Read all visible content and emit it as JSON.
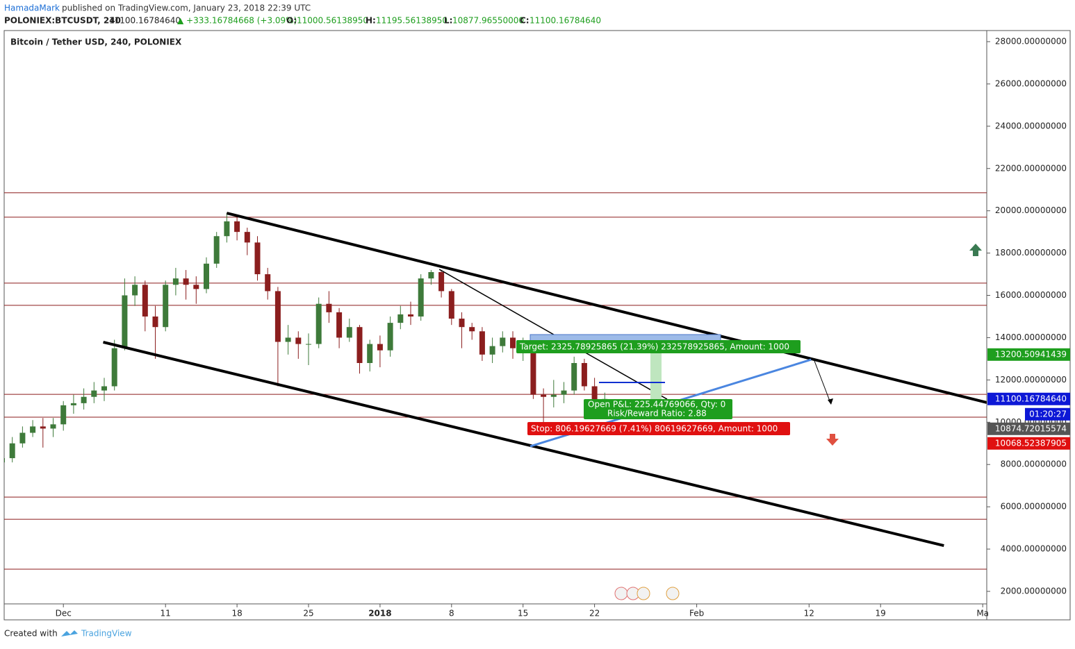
{
  "header": {
    "author": "HamadaMark",
    "published": "published on TradingView.com, January 23, 2018 22:39 UTC"
  },
  "ticker": {
    "symbol": "POLONIEX:BTCUSDT, 240",
    "last": "11100.16784640",
    "change": "▲ +333.16784668 (+3.09%)",
    "o_label": "O:",
    "o": "11000.56138950",
    "h_label": "H:",
    "h": "11195.56138950",
    "l_label": "L:",
    "l": "10877.96550000",
    "c_label": "C:",
    "c": "11100.16784640"
  },
  "footer": {
    "created": "Created with",
    "brand": "TradingView"
  },
  "position": {
    "target": "Target: 2325.78925865 (21.39%) 232578925865, Amount: 1000",
    "pnl": "Open P&L: 225.44769066, Qty: 0",
    "ratio": "Risk/Reward Ratio: 2.88",
    "stop": "Stop: 806.19627669 (7.41%) 80619627669, Amount: 1000"
  },
  "chart_data": {
    "type": "candlestick",
    "title": "Bitcoin / Tether USD, 240, POLONIEX",
    "categories": [
      null,
      null,
      null,
      null,
      null,
      null,
      "Dec",
      null,
      null,
      null,
      null,
      null,
      null,
      null,
      null,
      null,
      "11",
      null,
      null,
      null,
      null,
      null,
      null,
      "18",
      null,
      null,
      null,
      null,
      null,
      null,
      "25",
      null,
      null,
      null,
      null,
      null,
      null,
      "2018",
      null,
      null,
      null,
      null,
      null,
      null,
      "8",
      null,
      null,
      null,
      null,
      null,
      null,
      "15",
      null,
      null,
      null,
      null,
      null,
      null,
      "22",
      null,
      null,
      null,
      null,
      null,
      null,
      null,
      null,
      null,
      "Feb",
      null,
      null,
      null,
      null,
      null,
      null,
      null,
      null,
      null,
      null,
      "12",
      null,
      null,
      null,
      null,
      null,
      null,
      "19",
      null,
      null,
      null,
      null,
      null,
      null,
      null,
      null,
      null,
      "Ma"
    ],
    "open": [
      8100,
      8300,
      9000,
      9500,
      9800,
      9700,
      9900,
      10800,
      10900,
      11200,
      11500,
      11700,
      13500,
      16000,
      16500,
      15000,
      14500,
      16500,
      16800,
      16500,
      16300,
      17500,
      18800,
      19500,
      19000,
      18500,
      17000,
      16200,
      13800,
      14000,
      13700,
      13700,
      15600,
      15200,
      14000,
      14500,
      12800,
      13700,
      13400,
      14700,
      15100,
      15000,
      16800,
      17100,
      16200,
      14900,
      14500,
      14300,
      13200,
      13600,
      14000,
      13500,
      13500,
      11300,
      11200,
      11300,
      11500,
      12800,
      11700,
      10800,
      null,
      null,
      null,
      null,
      null,
      null,
      null,
      null,
      null,
      null,
      null,
      null,
      null,
      null,
      null,
      null,
      null,
      null,
      null,
      null,
      null,
      null,
      null,
      null,
      null,
      null,
      null,
      null,
      null,
      null,
      null,
      null,
      null,
      null,
      null,
      null,
      null
    ],
    "high": [
      8600,
      9300,
      9800,
      10100,
      10200,
      10200,
      11000,
      11300,
      11600,
      11900,
      12100,
      13900,
      16800,
      16900,
      16700,
      15500,
      16700,
      17300,
      17200,
      16900,
      17800,
      19000,
      19900,
      19800,
      19200,
      18800,
      17300,
      16400,
      14600,
      14300,
      14200,
      15900,
      16200,
      15400,
      14900,
      14600,
      13900,
      14100,
      15000,
      15500,
      15700,
      17000,
      17200,
      17200,
      16300,
      15200,
      14700,
      14500,
      14000,
      14300,
      14300,
      14000,
      14000,
      11600,
      12000,
      11900,
      13100,
      13000,
      12100,
      11400,
      null,
      null,
      null,
      null,
      null,
      null,
      null,
      null,
      null,
      null,
      null,
      null,
      null,
      null,
      null,
      null,
      null,
      null,
      null,
      null,
      null,
      null,
      null,
      null,
      null,
      null,
      null,
      null,
      null,
      null,
      null,
      null,
      null,
      null,
      null,
      null,
      null
    ],
    "low": [
      7900,
      8100,
      8800,
      9300,
      8800,
      9300,
      9600,
      10400,
      10600,
      10900,
      11000,
      11500,
      13400,
      15500,
      14300,
      13000,
      14300,
      16000,
      15800,
      15600,
      16100,
      17300,
      18500,
      18600,
      17900,
      16700,
      15800,
      11700,
      13200,
      13000,
      12700,
      13500,
      14700,
      13500,
      13800,
      12300,
      12400,
      12600,
      13100,
      14400,
      14600,
      14800,
      16500,
      15900,
      14600,
      13500,
      13900,
      12900,
      12800,
      13300,
      13000,
      12900,
      11100,
      9500,
      10700,
      10900,
      11300,
      11500,
      10400,
      10500,
      null,
      null,
      null,
      null,
      null,
      null,
      null,
      null,
      null,
      null,
      null,
      null,
      null,
      null,
      null,
      null,
      null,
      null,
      null,
      null,
      null,
      null,
      null,
      null,
      null,
      null,
      null,
      null,
      null,
      null,
      null,
      null,
      null,
      null,
      null,
      null,
      null
    ],
    "close": [
      8300,
      9000,
      9500,
      9800,
      9700,
      9900,
      10800,
      10900,
      11200,
      11500,
      11700,
      13500,
      16000,
      16500,
      15000,
      14500,
      16500,
      16800,
      16500,
      16300,
      17500,
      18800,
      19500,
      19000,
      18500,
      17000,
      16200,
      13800,
      14000,
      13700,
      13700,
      15600,
      15200,
      14000,
      14500,
      12800,
      13700,
      13400,
      14700,
      15100,
      15000,
      16800,
      17100,
      16200,
      14900,
      14500,
      14300,
      13200,
      13600,
      14000,
      13500,
      13500,
      11300,
      11200,
      11300,
      11500,
      12800,
      11700,
      10800,
      11100,
      null,
      null,
      null,
      null,
      null,
      null,
      null,
      null,
      null,
      null,
      null,
      null,
      null,
      null,
      null,
      null,
      null,
      null,
      null,
      null,
      null,
      null,
      null,
      null,
      null,
      null,
      null,
      null,
      null,
      null,
      null,
      null,
      null,
      null,
      null,
      null,
      null
    ],
    "up_color": "#3e7a3a",
    "down_color": "#8b1e1e",
    "ylim": [
      1408,
      28525
    ],
    "yticks": [
      {
        "value": 2000,
        "label": "2000.00000000"
      },
      {
        "value": 4000,
        "label": "4000.00000000"
      },
      {
        "value": 6000,
        "label": "6000.00000000"
      },
      {
        "value": 8000,
        "label": "8000.00000000"
      },
      {
        "value": 10000,
        "label": "10000.00000000"
      },
      {
        "value": 12000,
        "label": "12000.00000000"
      },
      {
        "value": 14000,
        "label": "14000.00000000"
      },
      {
        "value": 16000,
        "label": "16000.00000000"
      },
      {
        "value": 18000,
        "label": "18000.00000000"
      },
      {
        "value": 20000,
        "label": "20000.00000000"
      },
      {
        "value": 22000,
        "label": "22000.00000000"
      },
      {
        "value": 24000,
        "label": "24000.00000000"
      },
      {
        "value": 26000,
        "label": "26000.00000000"
      },
      {
        "value": 28000,
        "label": "28000.00000000"
      }
    ],
    "levels": [
      20850,
      19700,
      16580,
      15530,
      11320,
      10240,
      6460,
      5410,
      3050
    ],
    "level_color": "#8b1a1a",
    "trendlines": [
      {
        "points": [
          [
            22.0,
            19890
          ],
          [
            96.4,
            10930
          ]
        ],
        "width": 4,
        "color": "#000000"
      },
      {
        "points": [
          [
            9.9,
            13785
          ],
          [
            92.2,
            4165
          ]
        ],
        "width": 4,
        "color": "#000000"
      },
      {
        "points": [
          [
            42.8,
            17230
          ],
          [
            65.1,
            11090
          ]
        ],
        "width": 1.5,
        "color": "#000000"
      },
      {
        "points": [
          [
            51.7,
            8860
          ],
          [
            79.2,
            12960
          ]
        ],
        "width": 3,
        "color": "#4a86e0"
      }
    ],
    "price_badges": [
      {
        "value": 13200.50941439,
        "label": "13200.50941439",
        "color": "#1e9e1e"
      },
      {
        "value": 11100.1678464,
        "label": "11100.16784640",
        "color": "#0d18d6",
        "countdown": "01:20:27"
      },
      {
        "value": 10874.72015574,
        "label": "10874.72015574",
        "color": "#555555"
      },
      {
        "value": 10068.52387905,
        "label": "10068.52387905",
        "color": "#e01010"
      }
    ]
  }
}
